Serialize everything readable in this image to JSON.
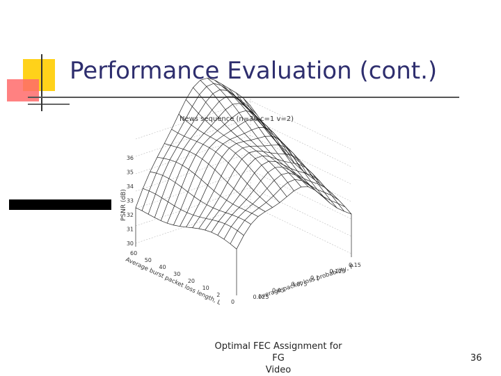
{
  "header": {
    "title": "Performance Evaluation (cont.)"
  },
  "figure": {
    "title": "News sequence (n=30 c=1 v=2)",
    "z_label": "PSNR (dB)",
    "x_label": "Average burst packet loss length, L",
    "y_label": "Average packet loss probability, P",
    "z_ticks": [
      "36",
      "35",
      "34",
      "33",
      "32",
      "31",
      "30"
    ],
    "x_ticks": [
      "60",
      "50",
      "40",
      "30",
      "20",
      "10",
      "2",
      "0"
    ],
    "y_ticks": [
      "0.025",
      "0.05",
      "0.075",
      "0.1",
      "0.125",
      "0.15"
    ]
  },
  "footer": {
    "text": [
      "Optimal FEC Assignment for FG",
      "Video"
    ],
    "page": "36"
  }
}
